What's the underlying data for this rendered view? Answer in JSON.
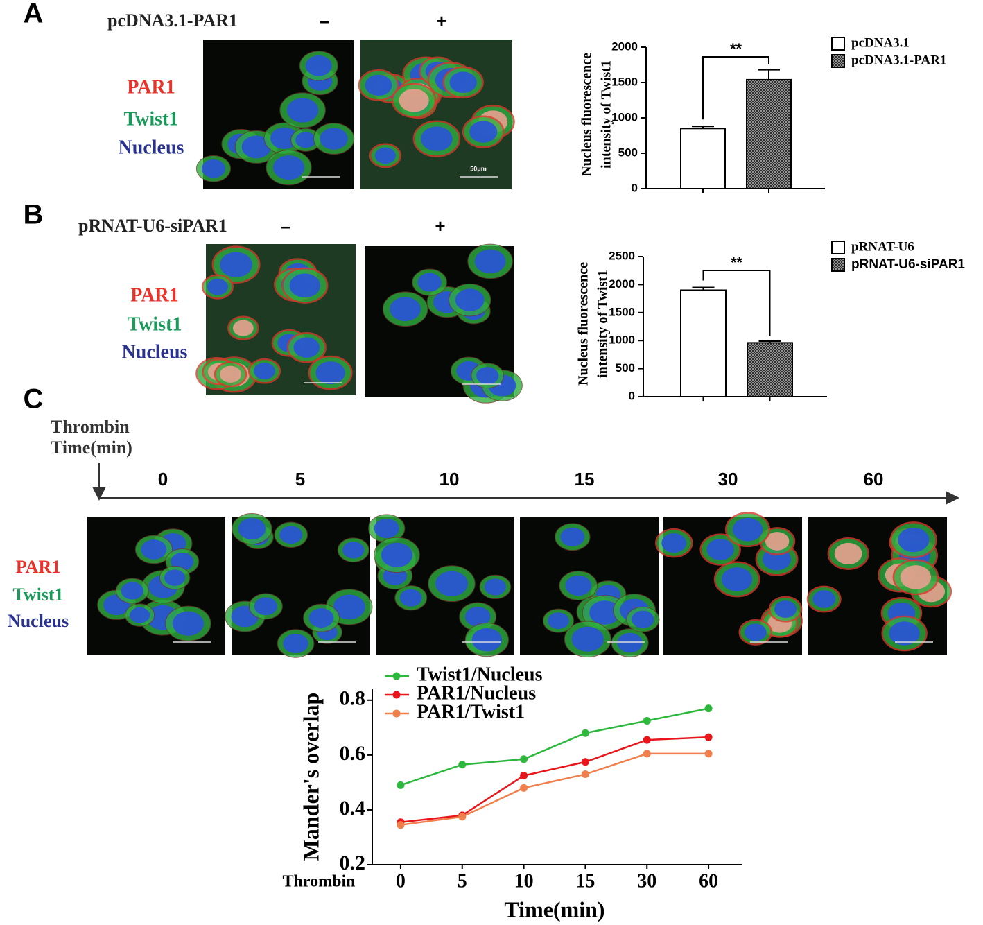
{
  "panels": [
    {
      "label": "A",
      "construct": "pcDNA3.1-PAR1",
      "conditions": [
        "–",
        "+"
      ],
      "stains": [
        "PAR1",
        "Twist1",
        "Nucleus"
      ],
      "scale_label": "50μm"
    },
    {
      "label": "B",
      "construct": "pRNAT-U6-siPAR1",
      "conditions": [
        "–",
        "+"
      ],
      "stains": [
        "PAR1",
        "Twist1",
        "Nucleus"
      ]
    },
    {
      "label": "C",
      "treatment": "Thrombin",
      "time_label": "Time(min)",
      "times": [
        "0",
        "5",
        "10",
        "15",
        "30",
        "60"
      ],
      "stains": [
        "PAR1",
        "Twist1",
        "Nucleus"
      ]
    }
  ],
  "chart_data": [
    {
      "type": "bar",
      "categories": [
        "pcDNA3.1",
        "pcDNA3.1-PAR1"
      ],
      "values": [
        850,
        1540
      ],
      "errors": [
        30,
        140
      ],
      "colors": [
        "#000000",
        "#000000"
      ],
      "hatched": [
        false,
        true
      ],
      "ylabel": [
        "Nucleus  fluorescence",
        "intensity of  Twist1"
      ],
      "ylim": [
        0,
        2000
      ],
      "yticks": [
        0,
        500,
        1000,
        1500,
        2000
      ],
      "annotation": "**"
    },
    {
      "type": "bar",
      "categories": [
        "pRNAT-U6",
        "pRNAT-U6-siPAR1"
      ],
      "values": [
        1900,
        960
      ],
      "errors": [
        50,
        30
      ],
      "colors": [
        "#000000",
        "#000000"
      ],
      "hatched": [
        false,
        true
      ],
      "ylabel": [
        "Nucleus  fluorescence",
        "intensity of  Twist1"
      ],
      "ylim": [
        0,
        2500
      ],
      "yticks": [
        0,
        500,
        1000,
        1500,
        2000,
        2500
      ],
      "annotation": "**"
    },
    {
      "type": "line",
      "categories": [
        "0",
        "5",
        "10",
        "15",
        "30",
        "60"
      ],
      "series": [
        {
          "name": "Twist1/Nucleus",
          "color": "#2db83d",
          "values": [
            0.49,
            0.565,
            0.585,
            0.68,
            0.725,
            0.77
          ]
        },
        {
          "name": "PAR1/Nucleus",
          "color": "#e8161b",
          "values": [
            0.355,
            0.38,
            0.525,
            0.575,
            0.655,
            0.665
          ]
        },
        {
          "name": "PAR1/Twist1",
          "color": "#f07f4b",
          "values": [
            0.345,
            0.375,
            0.48,
            0.53,
            0.605,
            0.605
          ]
        }
      ],
      "xaxis_note": "Thrombin",
      "xlabel": "Time(min)",
      "ylabel": "Mander's overlap",
      "ylim": [
        0.2,
        0.84
      ],
      "yticks": [
        0.2,
        0.4,
        0.6,
        0.8
      ]
    }
  ]
}
